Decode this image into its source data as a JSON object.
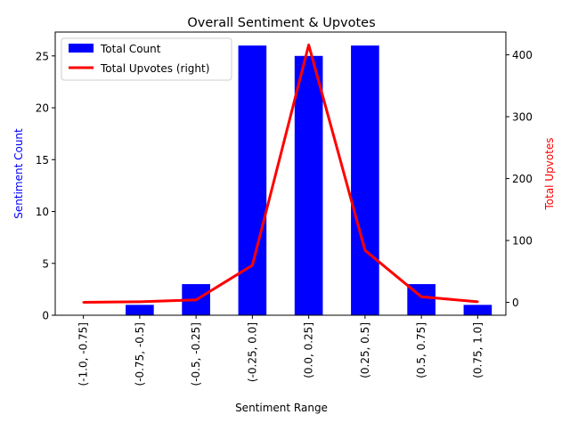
{
  "chart_data": {
    "type": "bar",
    "title": "Overall Sentiment & Upvotes",
    "xlabel": "Sentiment Range",
    "ylabel_left": "Sentiment Count",
    "ylabel_right": "Total Upvotes",
    "categories": [
      "(-1.0, -0.75]",
      "(-0.75, -0.5]",
      "(-0.5, -0.25]",
      "(-0.25, 0.0]",
      "(0.0, 0.25]",
      "(0.25, 0.5]",
      "(0.5, 0.75]",
      "(0.75, 1.0]"
    ],
    "ylim_left": [
      0,
      27.3
    ],
    "ylim_right": [
      -20.8,
      436.8
    ],
    "yticks_left": [
      0,
      5,
      10,
      15,
      20,
      25
    ],
    "yticks_right": [
      0,
      100,
      200,
      300,
      400
    ],
    "grid": false,
    "legend_position": "upper-left",
    "series": [
      {
        "name": "Total Count",
        "type": "bar",
        "axis": "left",
        "color": "#0000ff",
        "values": [
          0,
          1,
          3,
          26,
          25,
          26,
          3,
          1
        ]
      },
      {
        "name": "Total Upvotes (right)",
        "type": "line",
        "axis": "right",
        "color": "#ff0000",
        "values": [
          0,
          1,
          4,
          60,
          416,
          84,
          9,
          1
        ]
      }
    ]
  }
}
